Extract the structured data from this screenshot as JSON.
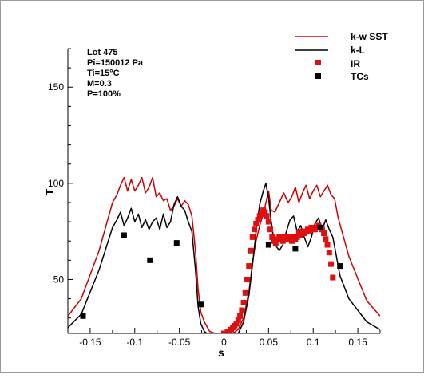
{
  "chart_data": {
    "type": "line",
    "xlabel": "s",
    "ylabel": "T",
    "xlim": [
      -0.175,
      0.175
    ],
    "ylim": [
      22,
      170
    ],
    "x_ticks": [
      -0.15,
      -0.1,
      -0.05,
      0,
      0.05,
      0.1,
      0.15
    ],
    "x_tick_labels": [
      "-0.15",
      "-0.1",
      "-0.05",
      "0",
      "0.05",
      "0.1",
      "0.15"
    ],
    "y_ticks": [
      50,
      100,
      150
    ],
    "y_tick_labels": [
      "50",
      "100",
      "150"
    ],
    "annotation_lines": [
      "Lot 475",
      "Pi=150012 Pa",
      "Ti=15°C",
      "M=0.3",
      "P=100%"
    ],
    "legend_position": "top-right",
    "grid": false,
    "series": [
      {
        "name": "k-w SST",
        "kind": "line",
        "color": "#cc0000",
        "x": [
          -0.175,
          -0.16,
          -0.14,
          -0.125,
          -0.12,
          -0.116,
          -0.112,
          -0.108,
          -0.104,
          -0.1,
          -0.096,
          -0.092,
          -0.088,
          -0.084,
          -0.08,
          -0.076,
          -0.072,
          -0.068,
          -0.064,
          -0.06,
          -0.056,
          -0.052,
          -0.048,
          -0.044,
          -0.04,
          -0.036,
          -0.032,
          -0.029,
          -0.026,
          -0.022,
          -0.016,
          -0.01,
          -0.004,
          0.0,
          0.004,
          0.01,
          0.016,
          0.022,
          0.028,
          0.033,
          0.036,
          0.04,
          0.044,
          0.047,
          0.05,
          0.053,
          0.057,
          0.062,
          0.067,
          0.072,
          0.076,
          0.08,
          0.084,
          0.088,
          0.092,
          0.096,
          0.1,
          0.104,
          0.108,
          0.112,
          0.116,
          0.12,
          0.124,
          0.128,
          0.14,
          0.16,
          0.175
        ],
        "y": [
          31,
          40,
          65,
          90,
          94,
          99,
          103,
          96,
          102,
          96,
          99,
          103,
          95,
          98,
          103,
          93,
          95,
          91,
          92,
          86,
          88,
          92,
          88,
          91,
          89,
          83,
          65,
          45,
          33,
          28,
          23,
          22,
          21,
          21,
          21,
          22,
          24,
          30,
          44,
          62,
          70,
          78,
          84,
          90,
          96,
          86,
          85,
          90,
          95,
          90,
          93,
          98,
          90,
          95,
          99,
          92,
          96,
          99,
          93,
          96,
          99,
          94,
          92,
          82,
          62,
          39,
          31
        ]
      },
      {
        "name": "k-L",
        "kind": "line",
        "color": "#000000",
        "x": [
          -0.175,
          -0.16,
          -0.14,
          -0.125,
          -0.12,
          -0.116,
          -0.112,
          -0.108,
          -0.104,
          -0.1,
          -0.096,
          -0.092,
          -0.088,
          -0.084,
          -0.08,
          -0.076,
          -0.072,
          -0.068,
          -0.064,
          -0.06,
          -0.056,
          -0.052,
          -0.048,
          -0.044,
          -0.04,
          -0.036,
          -0.032,
          -0.029,
          -0.026,
          -0.022,
          -0.016,
          -0.01,
          -0.004,
          0.0,
          0.004,
          0.01,
          0.016,
          0.022,
          0.028,
          0.033,
          0.036,
          0.04,
          0.044,
          0.047,
          0.05,
          0.053,
          0.056,
          0.059,
          0.062,
          0.066,
          0.07,
          0.074,
          0.078,
          0.082,
          0.086,
          0.09,
          0.094,
          0.098,
          0.102,
          0.106,
          0.11,
          0.114,
          0.118,
          0.122,
          0.126,
          0.13,
          0.14,
          0.16,
          0.175
        ],
        "y": [
          25,
          32,
          55,
          77,
          81,
          85,
          78,
          82,
          87,
          80,
          84,
          77,
          81,
          76,
          80,
          82,
          76,
          84,
          77,
          80,
          89,
          93,
          88,
          86,
          80,
          75,
          55,
          36,
          27,
          23,
          21,
          20,
          20,
          19,
          19,
          20,
          22,
          28,
          42,
          62,
          75,
          89,
          96,
          100,
          92,
          80,
          70,
          67,
          65,
          68,
          75,
          81,
          83,
          75,
          78,
          72,
          67,
          72,
          79,
          82,
          76,
          81,
          76,
          72,
          62,
          52,
          40,
          28,
          24
        ]
      },
      {
        "name": "IR",
        "kind": "markers",
        "color": "#dd1111",
        "x": [
          0.0,
          0.002,
          0.004,
          0.006,
          0.008,
          0.01,
          0.012,
          0.014,
          0.016,
          0.018,
          0.02,
          0.022,
          0.024,
          0.026,
          0.028,
          0.03,
          0.032,
          0.034,
          0.036,
          0.038,
          0.04,
          0.042,
          0.044,
          0.046,
          0.048,
          0.05,
          0.052,
          0.054,
          0.056,
          0.058,
          0.06,
          0.062,
          0.064,
          0.066,
          0.068,
          0.07,
          0.072,
          0.074,
          0.076,
          0.078,
          0.08,
          0.082,
          0.084,
          0.086,
          0.088,
          0.09,
          0.092,
          0.094,
          0.096,
          0.098,
          0.1,
          0.102,
          0.104,
          0.106,
          0.108,
          0.11,
          0.112,
          0.114,
          0.116,
          0.118,
          0.12,
          0.122
        ],
        "y": [
          22,
          22,
          23,
          23,
          24,
          25,
          26,
          27,
          29,
          31,
          34,
          38,
          43,
          50,
          57,
          65,
          72,
          76,
          79,
          81,
          83,
          84,
          86,
          85,
          83,
          80,
          76,
          72,
          70,
          69,
          71,
          72,
          71,
          70,
          72,
          71,
          72,
          71,
          70,
          72,
          71,
          72,
          74,
          73,
          75,
          74,
          75,
          76,
          75,
          77,
          76,
          76,
          77,
          78,
          77,
          76,
          74,
          71,
          68,
          64,
          58,
          51
        ]
      },
      {
        "name": "TCs",
        "kind": "markers",
        "color": "#000000",
        "x": [
          -0.158,
          -0.112,
          -0.083,
          -0.053,
          -0.026,
          0.05,
          0.08,
          0.108,
          0.13
        ],
        "y": [
          31,
          73,
          60,
          69,
          37,
          68,
          66,
          77,
          57
        ]
      }
    ]
  }
}
